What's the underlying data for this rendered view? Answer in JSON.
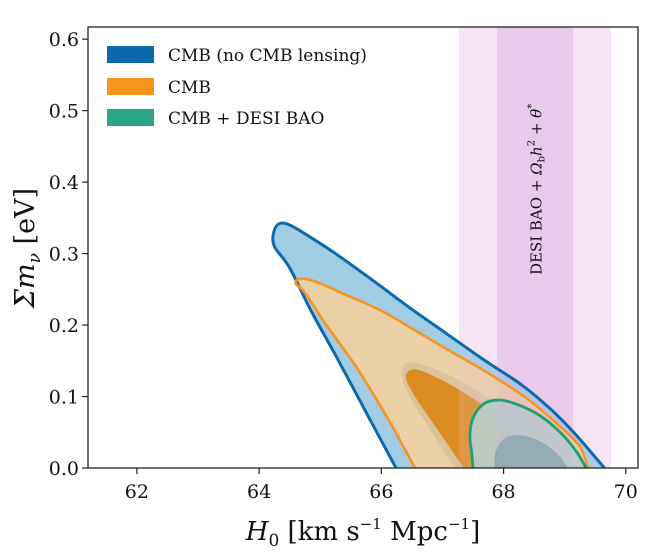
{
  "chart_data": {
    "type": "contour",
    "title": "",
    "xlabel": "H_0 [km s^-1 Mpc^-1]",
    "xlabel_parts": {
      "main": "H",
      "sub": "0",
      "units_open": " [km s",
      "exp1": "−1",
      "units_mid": " Mpc",
      "exp2": "−1",
      "units_close": "]"
    },
    "ylabel": "Σm_ν [eV]",
    "ylabel_parts": {
      "main": "Σm",
      "sub": "ν",
      "units": " [eV]"
    },
    "xlim": [
      61.2,
      70.2
    ],
    "ylim": [
      0.0,
      0.617
    ],
    "xticks": [
      62,
      64,
      66,
      68,
      70
    ],
    "xtick_labels": [
      "62",
      "64",
      "66",
      "68",
      "70"
    ],
    "yticks": [
      0.0,
      0.1,
      0.2,
      0.3,
      0.4,
      0.5,
      0.6
    ],
    "ytick_labels": [
      "0.0",
      "0.1",
      "0.2",
      "0.3",
      "0.4",
      "0.5",
      "0.6"
    ],
    "grid": false,
    "legend_position": "top-left",
    "band": {
      "label": "DESI BAO + Ω_b h² + θ_*",
      "label_parts": {
        "a": "DESI BAO + ",
        "omega": "Ω",
        "osub": "b",
        "h": "h",
        "hsup": "2",
        "b": " + ",
        "theta": "θ",
        "tsub": "*"
      },
      "center": 68.51,
      "sigma1": [
        67.89,
        69.14
      ],
      "sigma2": [
        67.27,
        69.76
      ],
      "color_inner": "#eed3ee",
      "color_outer": "#f6e8f7"
    },
    "series": [
      {
        "name": "CMB (no CMB lensing)",
        "color": "#0a6aab",
        "fill_outer": "#98c6e0",
        "fill_inner": "#4f9ccc",
        "contour_95": [
          [
            66.24,
            0.0
          ],
          [
            65.8,
            0.07
          ],
          [
            65.3,
            0.15
          ],
          [
            64.85,
            0.22
          ],
          [
            64.5,
            0.28
          ],
          [
            64.25,
            0.31
          ],
          [
            64.24,
            0.33
          ],
          [
            64.33,
            0.342
          ],
          [
            64.5,
            0.34
          ],
          [
            64.8,
            0.325
          ],
          [
            65.3,
            0.297
          ],
          [
            65.9,
            0.26
          ],
          [
            66.5,
            0.222
          ],
          [
            67.1,
            0.186
          ],
          [
            67.7,
            0.15
          ],
          [
            68.3,
            0.116
          ],
          [
            68.8,
            0.08
          ],
          [
            69.2,
            0.045
          ],
          [
            69.65,
            0.0
          ]
        ],
        "contour_68": []
      },
      {
        "name": "CMB",
        "color": "#f7941d",
        "fill_outer": "#f2d0a0",
        "fill_inner": "#d9881a",
        "contour_95": [
          [
            66.55,
            0.0
          ],
          [
            66.1,
            0.07
          ],
          [
            65.6,
            0.14
          ],
          [
            65.1,
            0.2
          ],
          [
            64.75,
            0.245
          ],
          [
            64.6,
            0.258
          ],
          [
            64.68,
            0.265
          ],
          [
            64.95,
            0.26
          ],
          [
            65.4,
            0.243
          ],
          [
            66.0,
            0.22
          ],
          [
            66.6,
            0.19
          ],
          [
            67.2,
            0.16
          ],
          [
            67.8,
            0.13
          ],
          [
            68.4,
            0.096
          ],
          [
            68.9,
            0.06
          ],
          [
            69.25,
            0.03
          ],
          [
            69.38,
            0.0
          ]
        ],
        "contour_68_outer": [
          [
            67.2,
            0.0
          ],
          [
            66.75,
            0.06
          ],
          [
            66.4,
            0.11
          ],
          [
            66.35,
            0.14
          ],
          [
            66.5,
            0.148
          ],
          [
            66.9,
            0.138
          ],
          [
            67.4,
            0.117
          ],
          [
            67.9,
            0.09
          ],
          [
            68.3,
            0.065
          ],
          [
            68.6,
            0.03
          ],
          [
            68.72,
            0.0
          ]
        ],
        "contour_68": [
          [
            67.35,
            0.0
          ],
          [
            66.95,
            0.05
          ],
          [
            66.55,
            0.1
          ],
          [
            66.4,
            0.128
          ],
          [
            66.55,
            0.138
          ],
          [
            66.9,
            0.127
          ],
          [
            67.3,
            0.108
          ],
          [
            67.7,
            0.085
          ],
          [
            68.0,
            0.06
          ],
          [
            68.25,
            0.03
          ],
          [
            68.35,
            0.0
          ]
        ]
      },
      {
        "name": "CMB + DESI BAO",
        "color": "#1f9e74",
        "fill_outer": "#aecfc3",
        "fill_inner": "#6fa39a",
        "contour_95": [
          [
            67.5,
            0.0
          ],
          [
            67.48,
            0.02
          ],
          [
            67.45,
            0.045
          ],
          [
            67.5,
            0.07
          ],
          [
            67.68,
            0.09
          ],
          [
            67.95,
            0.095
          ],
          [
            68.25,
            0.088
          ],
          [
            68.6,
            0.073
          ],
          [
            68.95,
            0.048
          ],
          [
            69.2,
            0.022
          ],
          [
            69.35,
            0.0
          ]
        ],
        "contour_68": [
          [
            67.85,
            0.0
          ],
          [
            67.88,
            0.025
          ],
          [
            68.05,
            0.043
          ],
          [
            68.35,
            0.045
          ],
          [
            68.65,
            0.035
          ],
          [
            68.9,
            0.018
          ],
          [
            69.05,
            0.0
          ]
        ]
      }
    ]
  }
}
